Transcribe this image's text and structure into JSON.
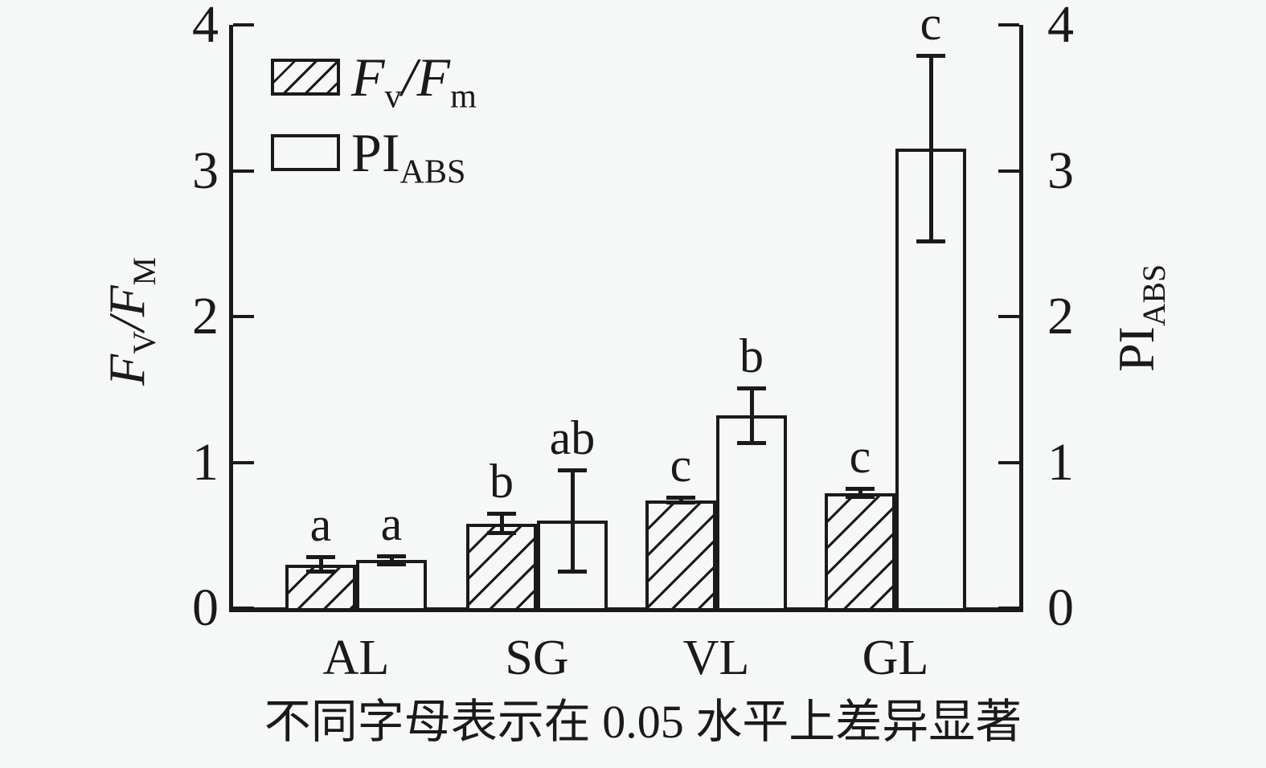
{
  "figure": {
    "background": "#f6f7f7",
    "ink_color": "#1a1a1a"
  },
  "chart_data": {
    "type": "bar",
    "categories": [
      "AL",
      "SG",
      "VL",
      "GL"
    ],
    "series": [
      {
        "name": "Fv/Fm",
        "axis": "left",
        "fill": "hatched",
        "values": [
          0.3,
          0.58,
          0.74,
          0.79
        ],
        "errors": [
          0.05,
          0.07,
          0.02,
          0.03
        ],
        "sig_letters": [
          "a",
          "b",
          "c",
          "c"
        ]
      },
      {
        "name": "PIABS",
        "axis": "right",
        "fill": "open",
        "values": [
          0.33,
          0.6,
          1.32,
          3.15
        ],
        "errors": [
          0.03,
          0.35,
          0.19,
          0.64
        ],
        "sig_letters": [
          "a",
          "ab",
          "b",
          "c"
        ]
      }
    ],
    "left_axis": {
      "label": "FV/FM",
      "label_parts": {
        "sym1": "F",
        "sub1": "V",
        "slash": "/",
        "sym2": "F",
        "sub2": "M"
      },
      "ticks": [
        0,
        1,
        2,
        3,
        4
      ],
      "range": [
        0,
        4
      ]
    },
    "right_axis": {
      "label": "PIABS",
      "label_parts": {
        "sym1": "PI",
        "sub1": "ABS"
      },
      "ticks": [
        0,
        1,
        2,
        3,
        4
      ],
      "range": [
        0,
        4
      ]
    },
    "legend": {
      "position": "top-left",
      "items": [
        {
          "sym1": "F",
          "sub1": "v",
          "slash": "/",
          "sym2": "F",
          "sub2": "m",
          "swatch": "hatched"
        },
        {
          "sym1": "PI",
          "sub1": "ABS",
          "swatch": "open"
        }
      ]
    },
    "caption": "不同字母表示在 0.05 水平上差异显著",
    "grid": false
  }
}
